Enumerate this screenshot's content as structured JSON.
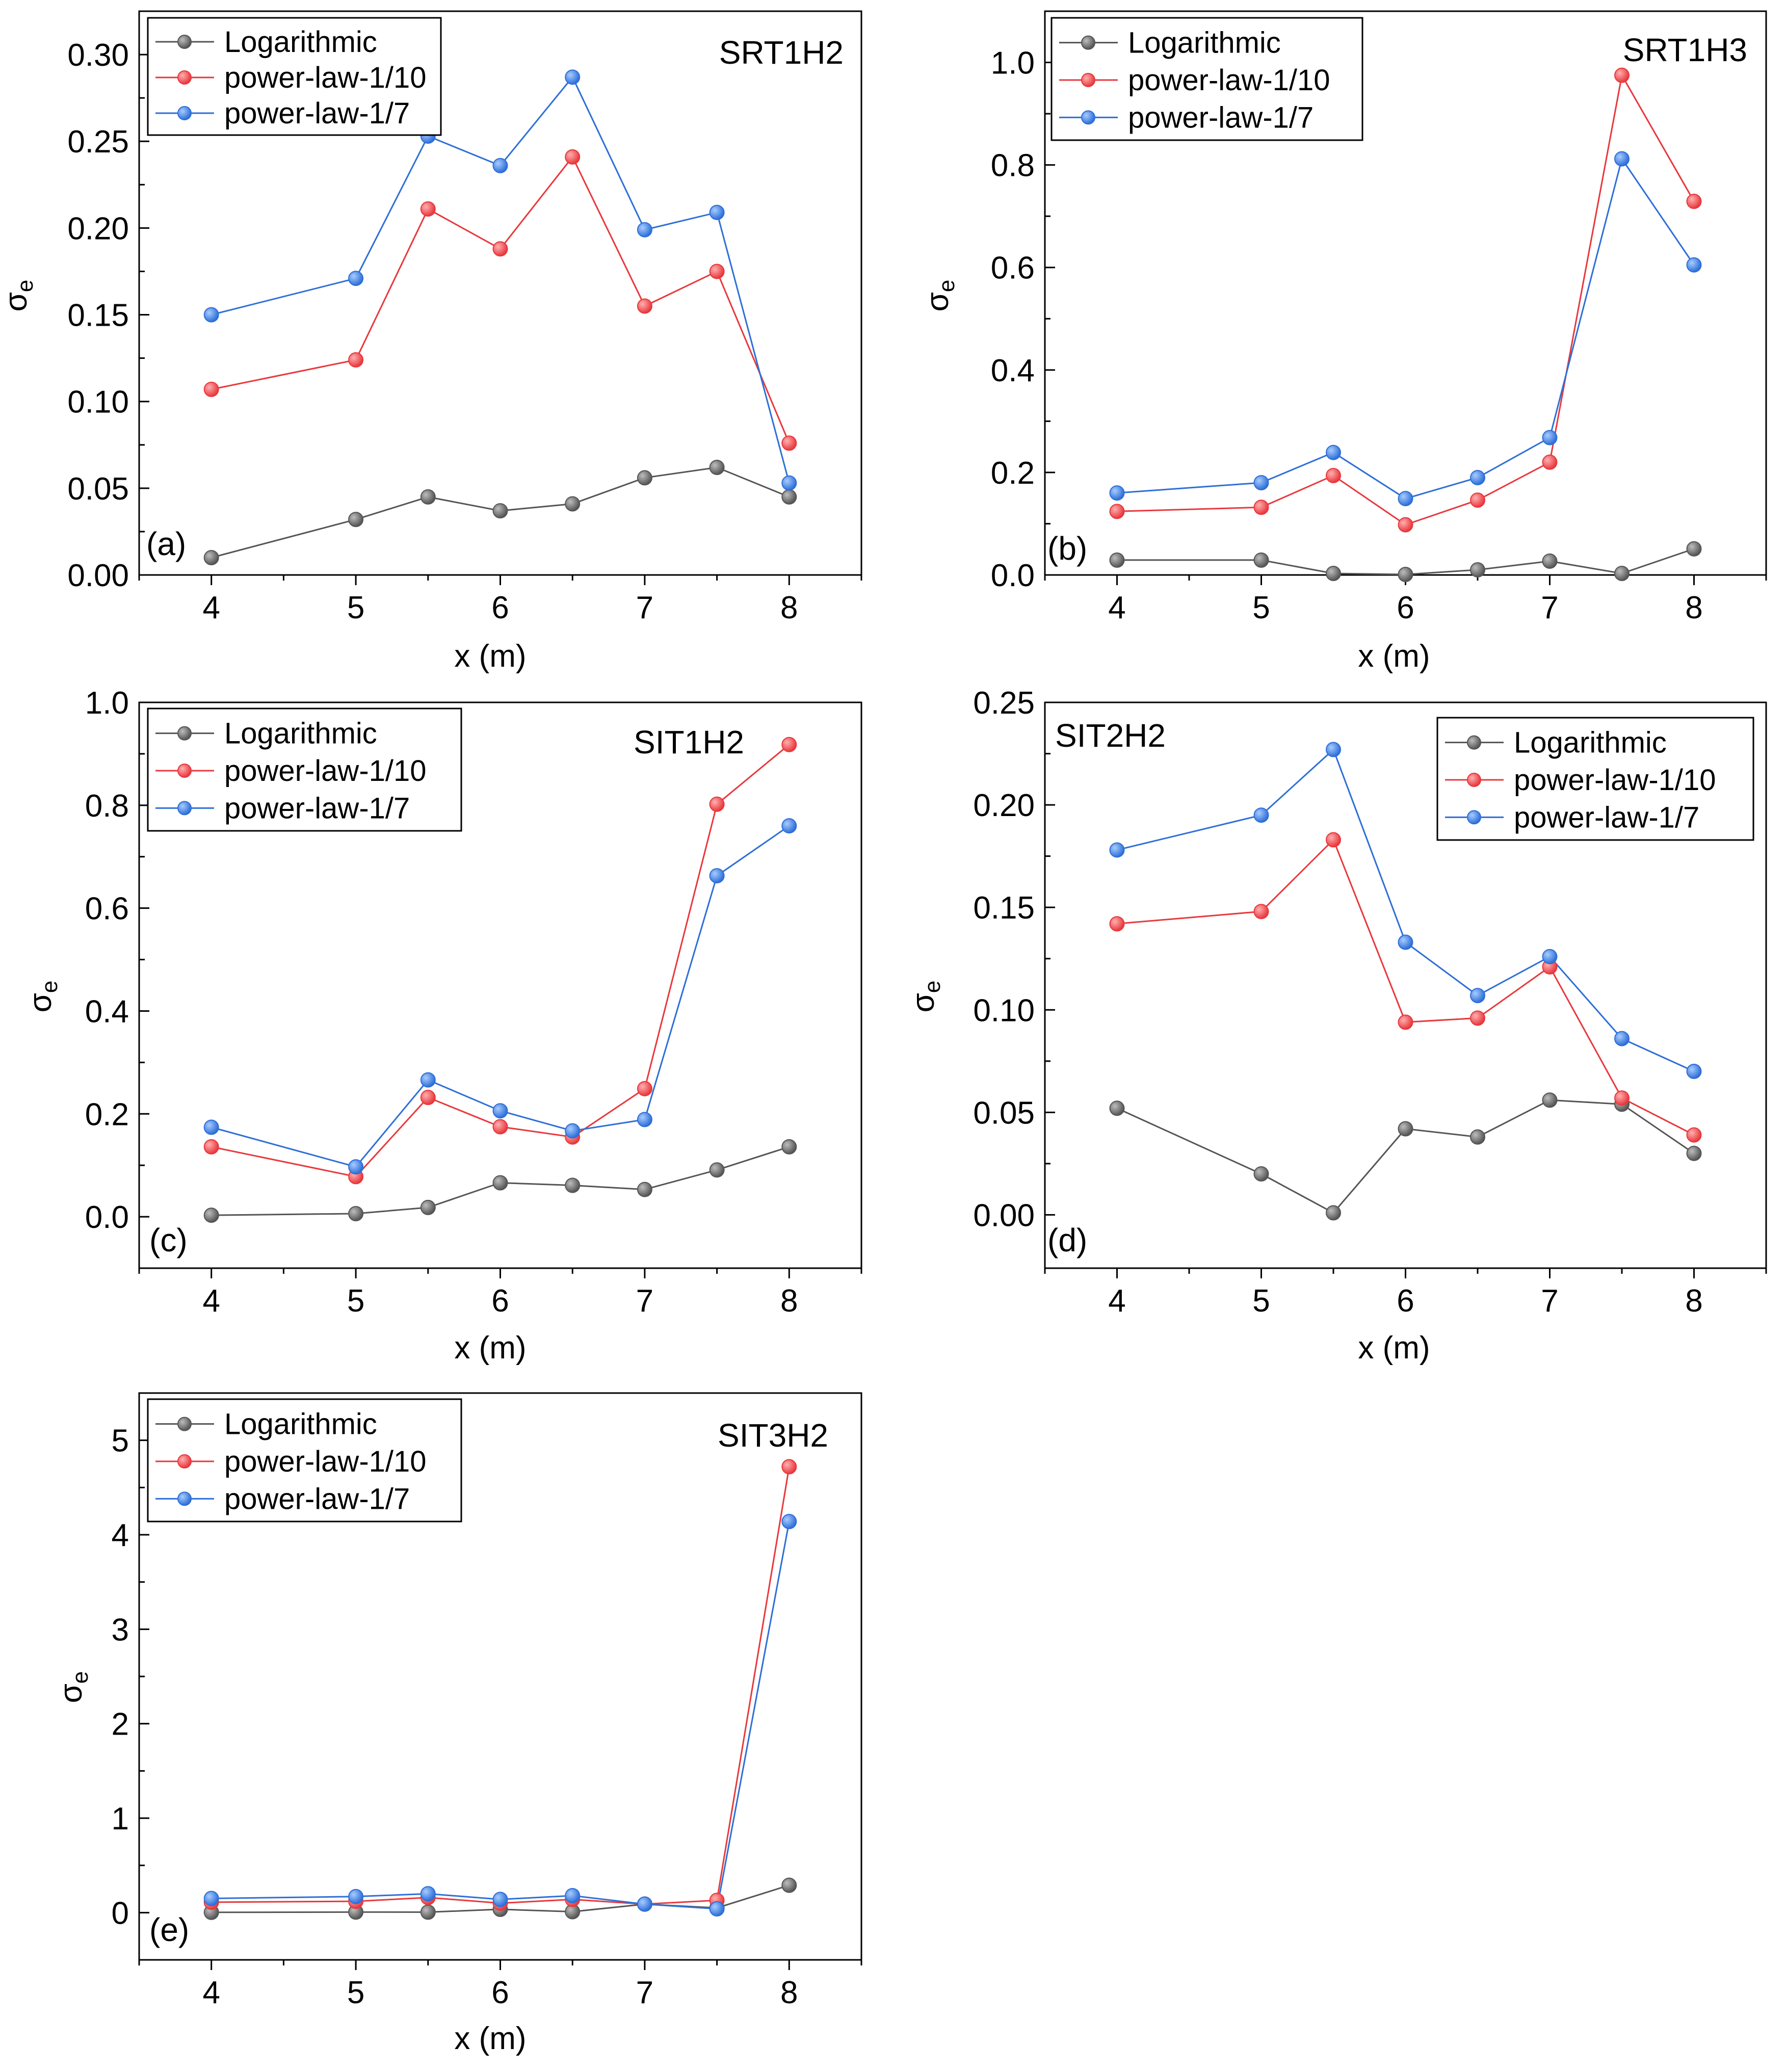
{
  "colors": {
    "Logarithmic": "#555555",
    "power-law-1/10": "#e8383d",
    "power-law-1/7": "#2e6fd8"
  },
  "marker_highlights": {
    "Logarithmic": "#bdbdbd",
    "power-law-1/10": "#ffb0b0",
    "power-law-1/7": "#a8ccff"
  },
  "chart_data": [
    {
      "type": "line",
      "title": "SRT1H2",
      "panel_tag": "(a)",
      "xlabel": "x (m)",
      "ylabel_main": "σ",
      "ylabel_sub": "e",
      "x": [
        4,
        5,
        5.5,
        6,
        6.5,
        7,
        7.5,
        8
      ],
      "xlim": [
        3.5,
        8.5
      ],
      "xticks": [
        4,
        5,
        6,
        7,
        8
      ],
      "ylim": [
        0,
        0.325
      ],
      "yticks": [
        0.0,
        0.05,
        0.1,
        0.15,
        0.2,
        0.25,
        0.3
      ],
      "ytick_labels": [
        "0.00",
        "0.05",
        "0.10",
        "0.15",
        "0.20",
        "0.25",
        "0.30"
      ],
      "legend_position": "top-left",
      "series": [
        {
          "name": "Logarithmic",
          "values": [
            0.01,
            0.032,
            0.045,
            0.037,
            0.041,
            0.056,
            0.062,
            0.045
          ]
        },
        {
          "name": "power-law-1/10",
          "values": [
            0.107,
            0.124,
            0.211,
            0.188,
            0.241,
            0.155,
            0.175,
            0.076
          ]
        },
        {
          "name": "power-law-1/7",
          "values": [
            0.15,
            0.171,
            0.253,
            0.236,
            0.287,
            0.199,
            0.209,
            0.053
          ]
        }
      ]
    },
    {
      "type": "line",
      "title": "SRT1H3",
      "panel_tag": "(b)",
      "xlabel": "x (m)",
      "ylabel_main": "σ",
      "ylabel_sub": "e",
      "x": [
        4,
        5,
        5.5,
        6,
        6.5,
        7,
        7.5,
        8
      ],
      "xlim": [
        3.5,
        8.5
      ],
      "xticks": [
        4,
        5,
        6,
        7,
        8
      ],
      "ylim": [
        0,
        1.1
      ],
      "yticks": [
        0.0,
        0.2,
        0.4,
        0.6,
        0.8,
        1.0
      ],
      "ytick_labels": [
        "0.0",
        "0.2",
        "0.4",
        "0.6",
        "0.8",
        "1.0"
      ],
      "legend_position": "top-left",
      "series": [
        {
          "name": "Logarithmic",
          "values": [
            0.029,
            0.029,
            0.003,
            0.001,
            0.01,
            0.027,
            0.003,
            0.051
          ]
        },
        {
          "name": "power-law-1/10",
          "values": [
            0.124,
            0.132,
            0.194,
            0.098,
            0.146,
            0.22,
            0.975,
            0.729
          ]
        },
        {
          "name": "power-law-1/7",
          "values": [
            0.16,
            0.18,
            0.239,
            0.149,
            0.19,
            0.268,
            0.812,
            0.605
          ]
        }
      ]
    },
    {
      "type": "line",
      "title": "SIT1H2",
      "panel_tag": "(c)",
      "xlabel": "x (m)",
      "ylabel_main": "σ",
      "ylabel_sub": "e",
      "x": [
        4,
        5,
        5.5,
        6,
        6.5,
        7,
        7.5,
        8
      ],
      "xlim": [
        3.5,
        8.5
      ],
      "xticks": [
        4,
        5,
        6,
        7,
        8
      ],
      "ylim": [
        -0.1,
        1.0
      ],
      "yticks": [
        0.0,
        0.2,
        0.4,
        0.6,
        0.8,
        1.0
      ],
      "ytick_labels": [
        "0.0",
        "0.2",
        "0.4",
        "0.6",
        "0.8",
        "1.0"
      ],
      "legend_position": "top-left",
      "series": [
        {
          "name": "Logarithmic",
          "values": [
            0.003,
            0.006,
            0.018,
            0.066,
            0.061,
            0.053,
            0.091,
            0.136
          ]
        },
        {
          "name": "power-law-1/10",
          "values": [
            0.136,
            0.078,
            0.232,
            0.175,
            0.155,
            0.249,
            0.802,
            0.918
          ]
        },
        {
          "name": "power-law-1/7",
          "values": [
            0.174,
            0.097,
            0.266,
            0.206,
            0.167,
            0.189,
            0.663,
            0.76
          ]
        }
      ]
    },
    {
      "type": "line",
      "title": "SIT2H2",
      "panel_tag": "(d)",
      "xlabel": "x (m)",
      "ylabel_main": "σ",
      "ylabel_sub": "e",
      "x": [
        4,
        5,
        5.5,
        6,
        6.5,
        7,
        7.5,
        8
      ],
      "xlim": [
        3.5,
        8.5
      ],
      "xticks": [
        4,
        5,
        6,
        7,
        8
      ],
      "ylim": [
        -0.026,
        0.25
      ],
      "yticks": [
        0.0,
        0.05,
        0.1,
        0.15,
        0.2,
        0.25
      ],
      "ytick_labels": [
        "0.00",
        "0.05",
        "0.10",
        "0.15",
        "0.20",
        "0.25"
      ],
      "legend_position": "top-right",
      "series": [
        {
          "name": "Logarithmic",
          "values": [
            0.052,
            0.02,
            0.001,
            0.042,
            0.038,
            0.056,
            0.054,
            0.03
          ]
        },
        {
          "name": "power-law-1/10",
          "values": [
            0.142,
            0.148,
            0.183,
            0.094,
            0.096,
            0.121,
            0.057,
            0.039
          ]
        },
        {
          "name": "power-law-1/7",
          "values": [
            0.178,
            0.195,
            0.227,
            0.133,
            0.107,
            0.126,
            0.086,
            0.07
          ]
        }
      ]
    },
    {
      "type": "line",
      "title": "SIT3H2",
      "panel_tag": "(e)",
      "xlabel": "x (m)",
      "ylabel_main": "σ",
      "ylabel_sub": "e",
      "x": [
        4,
        5,
        5.5,
        6,
        6.5,
        7,
        7.5,
        8
      ],
      "xlim": [
        3.5,
        8.5
      ],
      "xticks": [
        4,
        5,
        6,
        7,
        8
      ],
      "ylim": [
        -0.5,
        5.5
      ],
      "yticks": [
        0,
        1,
        2,
        3,
        4,
        5
      ],
      "ytick_labels": [
        "0",
        "1",
        "2",
        "3",
        "4",
        "5"
      ],
      "legend_position": "top-left",
      "series": [
        {
          "name": "Logarithmic",
          "values": [
            0.003,
            0.006,
            0.005,
            0.035,
            0.01,
            0.09,
            0.05,
            0.29
          ]
        },
        {
          "name": "power-law-1/10",
          "values": [
            0.11,
            0.12,
            0.16,
            0.1,
            0.14,
            0.09,
            0.13,
            4.72
          ]
        },
        {
          "name": "power-law-1/7",
          "values": [
            0.15,
            0.17,
            0.2,
            0.14,
            0.18,
            0.09,
            0.04,
            4.14
          ]
        }
      ]
    }
  ]
}
